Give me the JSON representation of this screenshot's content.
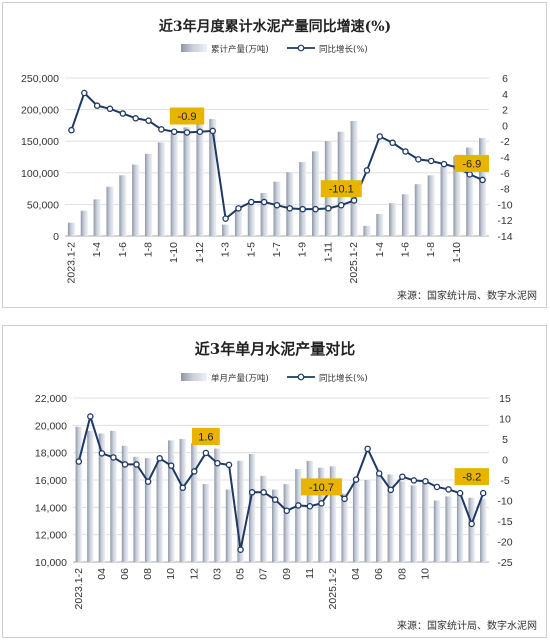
{
  "chart_data": [
    {
      "type": "bar+line",
      "title": "近3年月度累计水泥产量同比增速(%)",
      "series": [
        {
          "name": "累计产量(万吨)",
          "type": "bar",
          "axis": "left",
          "values": [
            21000,
            40000,
            58000,
            78000,
            96000,
            113000,
            130000,
            148000,
            162000,
            172000,
            178000,
            185000,
            18000,
            42000,
            50000,
            68000,
            86000,
            101000,
            117000,
            134000,
            150000,
            165000,
            182000,
            16000,
            35000,
            52000,
            66000,
            82000,
            96000,
            110000,
            126000,
            140000,
            155000
          ]
        },
        {
          "name": "同比增长(%)",
          "type": "line",
          "axis": "right",
          "values": [
            -0.6,
            4.1,
            2.5,
            2.1,
            1.5,
            0.9,
            0.6,
            -0.5,
            -0.8,
            -0.9,
            -0.8,
            -0.7,
            -11.8,
            -10.5,
            -9.7,
            -9.7,
            -10.1,
            -10.5,
            -10.6,
            -10.6,
            -10.5,
            -10.1,
            -9.5,
            -5.7,
            -1.4,
            -2.2,
            -3.3,
            -4.3,
            -4.5,
            -4.9,
            -5.3,
            -6.2,
            -6.9
          ]
        }
      ],
      "xtick_labels": [
        "2023.1-2",
        "1-4",
        "1-6",
        "1-8",
        "1-10",
        "1-12",
        "1-3",
        "1-5",
        "1-7",
        "1-9",
        "1-11",
        "2025.1-2",
        "1-4",
        "1-6",
        "1-8",
        "1-10"
      ],
      "xtick_positions": [
        0,
        2,
        4,
        6,
        8,
        10,
        12,
        14,
        16,
        18,
        20,
        22,
        24,
        26,
        28,
        30
      ],
      "left_ticks": [
        "0",
        "50,000",
        "100,000",
        "150,000",
        "200,000",
        "250,000"
      ],
      "right_ticks": [
        "-14",
        "-12",
        "-10",
        "-8",
        "-6",
        "-4",
        "-2",
        "0",
        "2",
        "4",
        "6"
      ],
      "left_range": [
        0,
        250000
      ],
      "right_range": [
        -14,
        6
      ],
      "callouts": [
        {
          "text": "-0.9",
          "index": 9
        },
        {
          "text": "-10.1",
          "index": 21
        },
        {
          "text": "-6.9",
          "index": 32
        }
      ],
      "source": "来源：国家统计局、数字水泥网"
    },
    {
      "type": "bar+line",
      "title": "近3年单月水泥产量对比",
      "series": [
        {
          "name": "单月产量(万吨)",
          "type": "bar",
          "axis": "left",
          "values": [
            19900,
            19600,
            19400,
            19600,
            18500,
            17700,
            17600,
            17400,
            18900,
            19000,
            18700,
            15700,
            18300,
            15300,
            17400,
            17900,
            16300,
            15300,
            15700,
            16800,
            17400,
            16900,
            17000,
            15000,
            16000,
            16000,
            16400,
            16400,
            15900,
            15600,
            16000,
            14500,
            14800,
            15100,
            14700,
            14600
          ]
        },
        {
          "name": "同比增长(%)",
          "type": "line",
          "axis": "right",
          "values": [
            -0.5,
            10.5,
            1.5,
            0.5,
            -1.2,
            -1.2,
            -5.4,
            0.3,
            -1.5,
            -6.9,
            -2.9,
            1.6,
            -0.9,
            -1.3,
            -22,
            -8,
            -8,
            -9.8,
            -12.5,
            -11.2,
            -11.4,
            -10.7,
            -6.7,
            -9.6,
            -4.9,
            2.6,
            -3.4,
            -7.4,
            -4.2,
            -5.1,
            -5.3,
            -6.7,
            -7.3,
            -8.2,
            -15.7,
            -8.2
          ]
        }
      ],
      "xtick_labels": [
        "2023.1-2",
        "04",
        "06",
        "08",
        "10",
        "12",
        "03",
        "05",
        "07",
        "09",
        "11",
        "2025.1-2",
        "04",
        "06",
        "08",
        "10"
      ],
      "xtick_positions": [
        0,
        2,
        4,
        6,
        8,
        10,
        12,
        14,
        16,
        18,
        20,
        22,
        24,
        26,
        28,
        30
      ],
      "left_ticks": [
        "10,000",
        "12,000",
        "14,000",
        "16,000",
        "18,000",
        "20,000",
        "22,000"
      ],
      "right_ticks": [
        "-25",
        "-20",
        "-15",
        "-10",
        "-5",
        "0",
        "5",
        "10",
        "15"
      ],
      "left_range": [
        10000,
        22000
      ],
      "right_range": [
        -25,
        15
      ],
      "callouts": [
        {
          "text": "1.6",
          "index": 11
        },
        {
          "text": "-10.7",
          "index": 21
        },
        {
          "text": "-8.2",
          "index": 35
        }
      ],
      "source": "来源：国家统计局、数字水泥网"
    }
  ]
}
